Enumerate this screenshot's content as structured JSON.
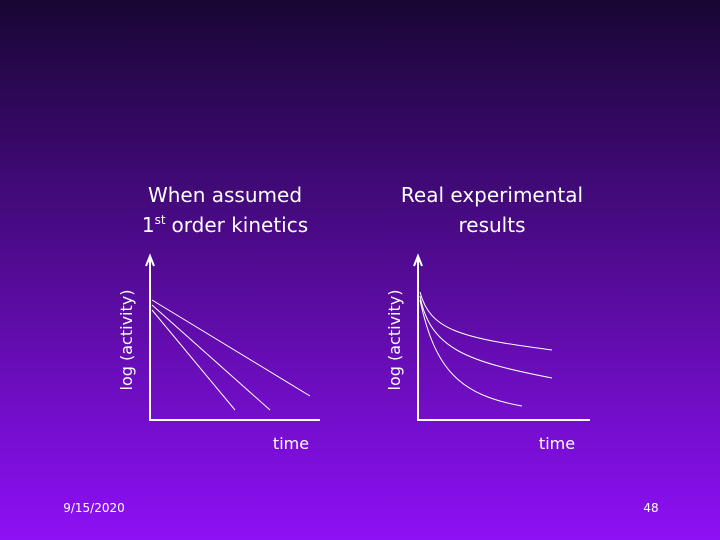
{
  "panels": [
    {
      "title_line1": "When assumed",
      "title_ordinal": "1",
      "title_sup": "st",
      "title_rest": "order kinetics",
      "ylabel": "log (activity)",
      "xlabel": "time"
    },
    {
      "title_line1": "Real experimental",
      "title_line2": "results",
      "ylabel": "log (activity)",
      "xlabel": "time"
    }
  ],
  "footer": {
    "date": "9/15/2020",
    "page": "48"
  }
}
